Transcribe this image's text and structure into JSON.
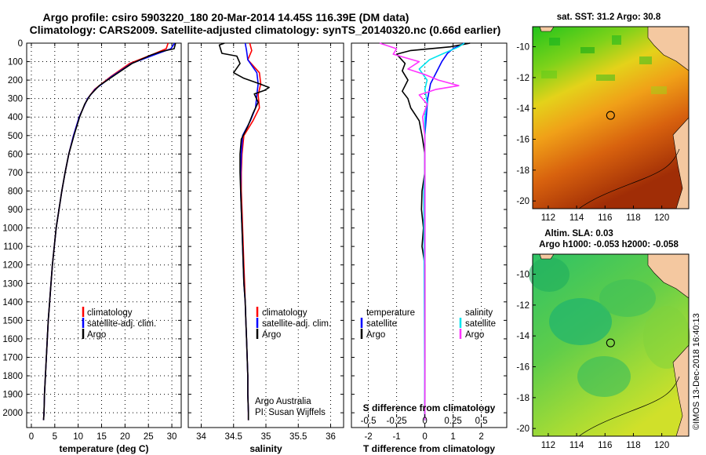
{
  "figure": {
    "title_line1": "Argo profile: csiro 5903220_180 20-Mar-2014 14.45S 116.39E (DM data)",
    "title_line2": "Climatology: CARS2009. Satellite-adjusted climatology: synTS_20140320.nc (0.66d earlier)",
    "credit": "©IMOS 13-Dec-2018 16:40:13"
  },
  "colors": {
    "climatology": "#ff0000",
    "satellite": "#0000ff",
    "argo": "#000000",
    "cyan": "#00e5ee",
    "magenta": "#ff33ff"
  },
  "chart_data": [
    {
      "id": "temperature",
      "type": "line",
      "xlabel": "temperature (deg C)",
      "ylabel": "",
      "xlim": [
        -1,
        32
      ],
      "ylim": [
        2080,
        0
      ],
      "xticks": [
        0,
        5,
        10,
        15,
        20,
        25,
        30
      ],
      "yticks": [
        0,
        100,
        200,
        300,
        400,
        500,
        600,
        700,
        800,
        900,
        1000,
        1100,
        1200,
        1300,
        1400,
        1500,
        1600,
        1700,
        1800,
        1900,
        2000
      ],
      "legend": [
        "climatology",
        "satellite-adj. clim.",
        "Argo"
      ],
      "series": [
        {
          "name": "climatology",
          "color": "climatology",
          "points": [
            [
              29.2,
              0
            ],
            [
              28.8,
              30
            ],
            [
              26,
              60
            ],
            [
              21,
              110
            ],
            [
              17,
              180
            ],
            [
              13.5,
              250
            ],
            [
              12,
              300
            ],
            [
              10.2,
              400
            ],
            [
              9,
              500
            ],
            [
              8,
              600
            ],
            [
              7.2,
              700
            ],
            [
              6.5,
              800
            ],
            [
              5.9,
              900
            ],
            [
              5.3,
              1000
            ],
            [
              4.9,
              1100
            ],
            [
              4.5,
              1200
            ],
            [
              4.2,
              1300
            ],
            [
              3.9,
              1400
            ],
            [
              3.6,
              1500
            ],
            [
              3.4,
              1600
            ],
            [
              3.2,
              1700
            ],
            [
              3,
              1800
            ],
            [
              2.8,
              1900
            ],
            [
              2.7,
              2000
            ],
            [
              2.6,
              2040
            ]
          ]
        },
        {
          "name": "satellite-adj. clim.",
          "color": "satellite",
          "points": [
            [
              30.6,
              0
            ],
            [
              29.8,
              30
            ],
            [
              26.6,
              60
            ],
            [
              21.4,
              110
            ],
            [
              17.2,
              180
            ],
            [
              13.6,
              250
            ],
            [
              12,
              300
            ],
            [
              10.2,
              400
            ],
            [
              9,
              500
            ],
            [
              8,
              600
            ],
            [
              7.2,
              700
            ],
            [
              6.5,
              800
            ],
            [
              5.9,
              900
            ],
            [
              5.3,
              1000
            ],
            [
              4.9,
              1100
            ],
            [
              4.5,
              1200
            ],
            [
              4.2,
              1300
            ],
            [
              3.9,
              1400
            ],
            [
              3.6,
              1500
            ],
            [
              3.4,
              1600
            ],
            [
              3.2,
              1700
            ],
            [
              3,
              1800
            ],
            [
              2.8,
              1900
            ],
            [
              2.7,
              2000
            ],
            [
              2.6,
              2040
            ]
          ]
        },
        {
          "name": "Argo",
          "color": "argo",
          "points": [
            [
              30.8,
              0
            ],
            [
              30.5,
              30
            ],
            [
              27.8,
              45
            ],
            [
              25.5,
              65
            ],
            [
              21.5,
              110
            ],
            [
              18,
              170
            ],
            [
              14.5,
              230
            ],
            [
              12.6,
              280
            ],
            [
              11.4,
              330
            ],
            [
              10.3,
              400
            ],
            [
              9.1,
              500
            ],
            [
              8,
              600
            ],
            [
              7.2,
              700
            ],
            [
              6.5,
              800
            ],
            [
              5.9,
              900
            ],
            [
              5.3,
              1000
            ],
            [
              4.9,
              1100
            ],
            [
              4.5,
              1200
            ],
            [
              4.2,
              1300
            ],
            [
              3.9,
              1400
            ],
            [
              3.6,
              1500
            ],
            [
              3.4,
              1600
            ],
            [
              3.2,
              1700
            ],
            [
              3,
              1800
            ],
            [
              2.8,
              1900
            ],
            [
              2.7,
              2000
            ],
            [
              2.6,
              2040
            ]
          ]
        }
      ]
    },
    {
      "id": "salinity",
      "type": "line",
      "xlabel": "salinity",
      "xlim": [
        33.8,
        36.2
      ],
      "ylim": [
        2080,
        0
      ],
      "xticks": [
        34,
        34.5,
        35,
        35.5,
        36
      ],
      "legend": [
        "climatology",
        "satellite-adj. clim.",
        "Argo"
      ],
      "annotation_line1": "Argo Australia",
      "annotation_line2": "PI: Susan Wijffels",
      "series": [
        {
          "name": "climatology",
          "color": "climatology",
          "points": [
            [
              34.75,
              0
            ],
            [
              34.78,
              40
            ],
            [
              34.72,
              90
            ],
            [
              34.9,
              160
            ],
            [
              34.92,
              220
            ],
            [
              34.88,
              280
            ],
            [
              34.9,
              350
            ],
            [
              34.8,
              420
            ],
            [
              34.66,
              500
            ],
            [
              34.63,
              600
            ],
            [
              34.62,
              700
            ],
            [
              34.62,
              800
            ],
            [
              34.63,
              900
            ],
            [
              34.64,
              1000
            ],
            [
              34.65,
              1100
            ],
            [
              34.66,
              1200
            ],
            [
              34.67,
              1300
            ],
            [
              34.68,
              1400
            ],
            [
              34.69,
              1500
            ],
            [
              34.7,
              1600
            ],
            [
              34.71,
              1700
            ],
            [
              34.72,
              1800
            ],
            [
              34.72,
              1900
            ],
            [
              34.73,
              2000
            ],
            [
              34.73,
              2040
            ]
          ]
        },
        {
          "name": "satellite-adj. clim.",
          "color": "satellite",
          "points": [
            [
              34.68,
              0
            ],
            [
              34.7,
              40
            ],
            [
              34.72,
              90
            ],
            [
              34.86,
              160
            ],
            [
              34.88,
              220
            ],
            [
              34.86,
              280
            ],
            [
              34.84,
              350
            ],
            [
              34.76,
              420
            ],
            [
              34.64,
              500
            ],
            [
              34.62,
              600
            ],
            [
              34.61,
              700
            ],
            [
              34.61,
              800
            ],
            [
              34.62,
              900
            ],
            [
              34.63,
              1000
            ],
            [
              34.64,
              1100
            ],
            [
              34.65,
              1200
            ],
            [
              34.66,
              1300
            ],
            [
              34.68,
              1400
            ],
            [
              34.69,
              1500
            ],
            [
              34.7,
              1600
            ],
            [
              34.71,
              1700
            ],
            [
              34.72,
              1800
            ],
            [
              34.72,
              1900
            ],
            [
              34.73,
              2000
            ],
            [
              34.73,
              2040
            ]
          ]
        },
        {
          "name": "Argo",
          "color": "argo",
          "points": [
            [
              34.36,
              0
            ],
            [
              34.28,
              10
            ],
            [
              34.32,
              55
            ],
            [
              34.55,
              70
            ],
            [
              34.6,
              110
            ],
            [
              34.5,
              160
            ],
            [
              34.66,
              190
            ],
            [
              34.9,
              220
            ],
            [
              35.05,
              240
            ],
            [
              34.98,
              255
            ],
            [
              34.82,
              275
            ],
            [
              34.88,
              320
            ],
            [
              34.8,
              380
            ],
            [
              34.72,
              450
            ],
            [
              34.62,
              520
            ],
            [
              34.6,
              600
            ],
            [
              34.6,
              700
            ],
            [
              34.61,
              800
            ],
            [
              34.62,
              900
            ],
            [
              34.63,
              1000
            ],
            [
              34.64,
              1100
            ],
            [
              34.65,
              1200
            ],
            [
              34.66,
              1300
            ],
            [
              34.68,
              1400
            ],
            [
              34.69,
              1500
            ],
            [
              34.7,
              1600
            ],
            [
              34.71,
              1700
            ],
            [
              34.72,
              1800
            ],
            [
              34.72,
              1900
            ],
            [
              34.73,
              2000
            ],
            [
              34.73,
              2040
            ]
          ]
        }
      ]
    },
    {
      "id": "difference",
      "type": "line",
      "xlabel": "T difference from climatology",
      "xlabel2": "S difference from climatology",
      "xlim": [
        -2.6,
        2.9
      ],
      "ylim": [
        2080,
        0
      ],
      "xticks": [
        -2,
        -1,
        0,
        1,
        2
      ],
      "xticks_s_labels": [
        "-0.5",
        "-0.25",
        "0",
        "0.25",
        "0.5"
      ],
      "xticks_s_values": [
        -0.5,
        -0.25,
        0,
        0.25,
        0.5
      ],
      "legend_left_title": "temperature",
      "legend_left": [
        "satellite",
        "Argo"
      ],
      "legend_right_title": "salinity",
      "legend_right": [
        "satellite",
        "Argo"
      ],
      "series": [
        {
          "name": "T satellite",
          "color": "satellite",
          "points": [
            [
              1.4,
              0
            ],
            [
              1.0,
              30
            ],
            [
              0.8,
              55
            ],
            [
              0.6,
              100
            ],
            [
              0.4,
              160
            ],
            [
              0.2,
              220
            ],
            [
              0.1,
              300
            ],
            [
              0.05,
              400
            ],
            [
              0,
              500
            ],
            [
              0,
              2040
            ]
          ]
        },
        {
          "name": "T Argo",
          "color": "argo",
          "points": [
            [
              1.6,
              0
            ],
            [
              0.9,
              20
            ],
            [
              -0.5,
              40
            ],
            [
              -1.0,
              60
            ],
            [
              -0.7,
              110
            ],
            [
              -0.8,
              150
            ],
            [
              -0.6,
              200
            ],
            [
              -0.8,
              260
            ],
            [
              -0.6,
              300
            ],
            [
              -0.5,
              350
            ],
            [
              -0.2,
              420
            ],
            [
              -0.1,
              500
            ],
            [
              0,
              600
            ],
            [
              0,
              700
            ],
            [
              -0.1,
              800
            ],
            [
              -0.12,
              900
            ],
            [
              -0.05,
              1000
            ],
            [
              -0.1,
              1100
            ],
            [
              0,
              1200
            ],
            [
              0,
              1400
            ],
            [
              0,
              2040
            ]
          ]
        },
        {
          "name": "S satellite",
          "color": "cyan",
          "points": [
            [
              0.35,
              0
            ],
            [
              0.3,
              20
            ],
            [
              0.15,
              60
            ],
            [
              0.04,
              90
            ],
            [
              -0.05,
              140
            ],
            [
              0.02,
              200
            ],
            [
              0.0,
              250
            ],
            [
              0.02,
              320
            ],
            [
              0.0,
              400
            ],
            [
              0,
              500
            ],
            [
              0,
              700
            ],
            [
              -0.01,
              800
            ],
            [
              0,
              2040
            ]
          ]
        },
        {
          "name": "S Argo",
          "color": "magenta",
          "points": [
            [
              -0.4,
              0
            ],
            [
              -0.25,
              30
            ],
            [
              -0.28,
              60
            ],
            [
              -0.05,
              100
            ],
            [
              -0.15,
              140
            ],
            [
              0.0,
              170
            ],
            [
              0.12,
              200
            ],
            [
              0.3,
              230
            ],
            [
              0.1,
              250
            ],
            [
              -0.05,
              280
            ],
            [
              0.02,
              330
            ],
            [
              -0.02,
              400
            ],
            [
              0,
              500
            ],
            [
              0,
              700
            ],
            [
              0,
              2040
            ]
          ]
        }
      ]
    }
  ],
  "maps": [
    {
      "id": "sst-map",
      "title_line1": "sat. SST: 31.2  Argo: 30.8",
      "title_line2": "",
      "xticks": [
        "112",
        "114",
        "116",
        "118",
        "120"
      ],
      "yticks": [
        "-10",
        "-12",
        "-14",
        "-16",
        "-18",
        "-20"
      ],
      "lon_range": [
        110.9,
        121.9
      ],
      "lat_range": [
        -20.5,
        -8.7
      ],
      "float_lon": 116.39,
      "float_lat": -14.45
    },
    {
      "id": "sla-map",
      "title_line1": "Altim. SLA: 0.03",
      "title_line2": "Argo h1000: -0.053 h2000: -0.058",
      "xticks": [
        "112",
        "114",
        "116",
        "118",
        "120"
      ],
      "yticks": [
        "-10",
        "-12",
        "-14",
        "-16",
        "-18",
        "-20"
      ],
      "lon_range": [
        110.9,
        121.9
      ],
      "lat_range": [
        -20.5,
        -8.7
      ],
      "float_lon": 116.39,
      "float_lat": -14.45
    }
  ]
}
